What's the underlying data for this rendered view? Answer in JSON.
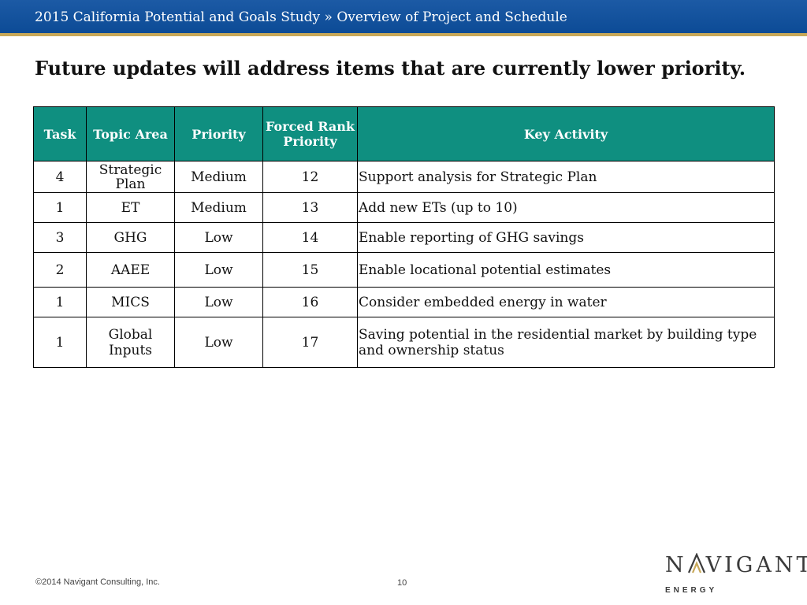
{
  "header": {
    "breadcrumb": "2015 California Potential and Goals Study » Overview of Project and Schedule"
  },
  "slide": {
    "title": "Future updates will address items that are currently lower priority."
  },
  "table": {
    "headers": {
      "task": "Task",
      "topic_area": "Topic Area",
      "priority": "Priority",
      "forced_rank_line1": "Forced Rank",
      "forced_rank_line2": "Priority",
      "key_activity": "Key Activity"
    },
    "rows": [
      {
        "task": "4",
        "topic_line1": "Strategic",
        "topic_line2": "Plan",
        "priority": "Medium",
        "rank": "12",
        "activity_line1": "Support analysis for Strategic Plan",
        "activity_line2": ""
      },
      {
        "task": "1",
        "topic_line1": "ET",
        "topic_line2": "",
        "priority": "Medium",
        "rank": "13",
        "activity_line1": "Add new ETs (up to 10)",
        "activity_line2": ""
      },
      {
        "task": "3",
        "topic_line1": "GHG",
        "topic_line2": "",
        "priority": "Low",
        "rank": "14",
        "activity_line1": "Enable reporting of GHG savings",
        "activity_line2": ""
      },
      {
        "task": "2",
        "topic_line1": "AAEE",
        "topic_line2": "",
        "priority": "Low",
        "rank": "15",
        "activity_line1": "Enable locational potential estimates",
        "activity_line2": ""
      },
      {
        "task": "1",
        "topic_line1": "MICS",
        "topic_line2": "",
        "priority": "Low",
        "rank": "16",
        "activity_line1": "Consider embedded energy in water",
        "activity_line2": ""
      },
      {
        "task": "1",
        "topic_line1": "Global",
        "topic_line2": "Inputs",
        "priority": "Low",
        "rank": "17",
        "activity_line1": "Saving potential in the residential market by building type",
        "activity_line2": "and ownership status"
      }
    ]
  },
  "footer": {
    "copyright": "©2014 Navigant Consulting, Inc.",
    "page_number": "10"
  },
  "logo": {
    "word_before": "N",
    "word_after": "VIGANT",
    "subword": "ENERGY",
    "color": "#3b3b3b",
    "accent_color": "#c8a858"
  }
}
